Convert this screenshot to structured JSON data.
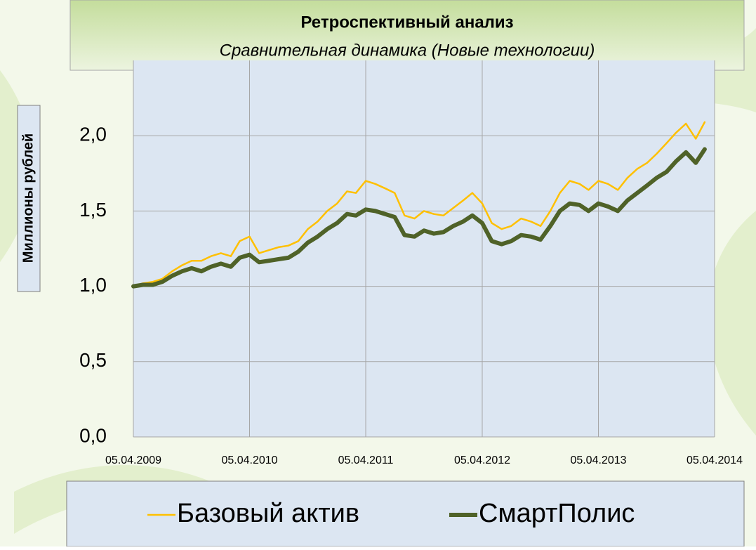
{
  "chart_data": {
    "type": "line",
    "title": "Ретроспективный анализ",
    "subtitle": "Сравнительная динамика (Новые технологии)",
    "y_label": "Миллионы рублей",
    "x": [
      "05.04.2009",
      "05.05.2009",
      "05.06.2009",
      "05.07.2009",
      "05.08.2009",
      "05.09.2009",
      "05.10.2009",
      "05.11.2009",
      "05.12.2009",
      "05.01.2010",
      "05.02.2010",
      "05.03.2010",
      "05.04.2010",
      "05.05.2010",
      "05.06.2010",
      "05.07.2010",
      "05.08.2010",
      "05.09.2010",
      "05.10.2010",
      "05.11.2010",
      "05.12.2010",
      "05.01.2011",
      "05.02.2011",
      "05.03.2011",
      "05.04.2011",
      "05.05.2011",
      "05.06.2011",
      "05.07.2011",
      "05.08.2011",
      "05.09.2011",
      "05.10.2011",
      "05.11.2011",
      "05.12.2011",
      "05.01.2012",
      "05.02.2012",
      "05.03.2012",
      "05.04.2012",
      "05.05.2012",
      "05.06.2012",
      "05.07.2012",
      "05.08.2012",
      "05.09.2012",
      "05.10.2012",
      "05.11.2012",
      "05.12.2012",
      "05.01.2013",
      "05.02.2013",
      "05.03.2013",
      "05.04.2013",
      "05.05.2013",
      "05.06.2013",
      "05.07.2013",
      "05.08.2013",
      "05.09.2013",
      "05.10.2013",
      "05.11.2013",
      "05.12.2013",
      "05.01.2014",
      "05.02.2014",
      "05.03.2014"
    ],
    "series": [
      {
        "name": "Базовый актив",
        "color": "#ffc000",
        "width": 2.5,
        "values": [
          1.0,
          1.02,
          1.03,
          1.05,
          1.1,
          1.14,
          1.17,
          1.17,
          1.2,
          1.22,
          1.2,
          1.3,
          1.33,
          1.22,
          1.24,
          1.26,
          1.27,
          1.3,
          1.38,
          1.43,
          1.5,
          1.55,
          1.63,
          1.62,
          1.7,
          1.68,
          1.65,
          1.62,
          1.47,
          1.45,
          1.5,
          1.48,
          1.47,
          1.52,
          1.57,
          1.62,
          1.55,
          1.42,
          1.38,
          1.4,
          1.45,
          1.43,
          1.4,
          1.5,
          1.62,
          1.7,
          1.68,
          1.64,
          1.7,
          1.68,
          1.64,
          1.72,
          1.78,
          1.82,
          1.88,
          1.95,
          2.02,
          2.08,
          1.98,
          2.09
        ]
      },
      {
        "name": "СмартПолис",
        "color": "#4f6228",
        "width": 6,
        "values": [
          1.0,
          1.01,
          1.01,
          1.03,
          1.07,
          1.1,
          1.12,
          1.1,
          1.13,
          1.15,
          1.13,
          1.19,
          1.21,
          1.16,
          1.17,
          1.18,
          1.19,
          1.23,
          1.29,
          1.33,
          1.38,
          1.42,
          1.48,
          1.47,
          1.51,
          1.5,
          1.48,
          1.46,
          1.34,
          1.33,
          1.37,
          1.35,
          1.36,
          1.4,
          1.43,
          1.47,
          1.42,
          1.3,
          1.28,
          1.3,
          1.34,
          1.33,
          1.31,
          1.4,
          1.5,
          1.55,
          1.54,
          1.5,
          1.55,
          1.53,
          1.5,
          1.57,
          1.62,
          1.67,
          1.72,
          1.76,
          1.83,
          1.89,
          1.82,
          1.91
        ]
      }
    ],
    "xlim": [
      "05.04.2009",
      "05.04.2014"
    ],
    "xticks": [
      "05.04.2009",
      "05.04.2010",
      "05.04.2011",
      "05.04.2012",
      "05.04.2013",
      "05.04.2014"
    ],
    "ylim": [
      0,
      2.5
    ],
    "yticks": [
      {
        "value": 0,
        "label": "0,0"
      },
      {
        "value": 0.5,
        "label": "0,5"
      },
      {
        "value": 1,
        "label": "1,0"
      },
      {
        "value": 1.5,
        "label": "1,5"
      },
      {
        "value": 2,
        "label": "2,0"
      }
    ],
    "grid": true,
    "legend": "bottom"
  }
}
